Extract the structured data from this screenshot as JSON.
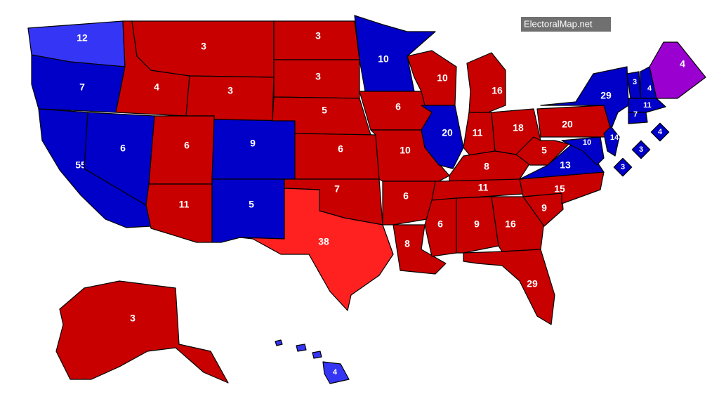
{
  "watermark": "ElectoralMap.net",
  "states": [
    {
      "votes": 12,
      "color": "#3535f5"
    },
    {
      "votes": 7,
      "color": "#0000c8"
    },
    {
      "votes": 55,
      "color": "#0000c8"
    },
    {
      "votes": 6,
      "color": "#0000c8"
    },
    {
      "votes": 4,
      "color": "#c80000"
    },
    {
      "votes": 3,
      "color": "#c80000"
    },
    {
      "votes": 3,
      "color": "#c80000"
    },
    {
      "votes": 6,
      "color": "#c80000"
    },
    {
      "votes": 11,
      "color": "#c80000"
    },
    {
      "votes": 9,
      "color": "#0000c8"
    },
    {
      "votes": 5,
      "color": "#0000c8"
    },
    {
      "votes": 3,
      "color": "#c80000"
    },
    {
      "votes": 3,
      "color": "#c80000"
    },
    {
      "votes": 5,
      "color": "#c80000"
    },
    {
      "votes": 6,
      "color": "#c80000"
    },
    {
      "votes": 7,
      "color": "#c80000"
    },
    {
      "votes": 38,
      "color": "#ff2020"
    },
    {
      "votes": 10,
      "color": "#0000c8"
    },
    {
      "votes": 6,
      "color": "#c80000"
    },
    {
      "votes": 10,
      "color": "#c80000"
    },
    {
      "votes": 6,
      "color": "#c80000"
    },
    {
      "votes": 8,
      "color": "#c80000"
    },
    {
      "votes": 10,
      "color": "#c80000"
    },
    {
      "votes": 20,
      "color": "#0000c8"
    },
    {
      "votes": 16,
      "color": "#c80000"
    },
    {
      "votes": 11,
      "color": "#c80000"
    },
    {
      "votes": 18,
      "color": "#c80000"
    },
    {
      "votes": 8,
      "color": "#c80000"
    },
    {
      "votes": 11,
      "color": "#c80000"
    },
    {
      "votes": 6,
      "color": "#c80000"
    },
    {
      "votes": 9,
      "color": "#c80000"
    },
    {
      "votes": 16,
      "color": "#c80000"
    },
    {
      "votes": 29,
      "color": "#c80000"
    },
    {
      "votes": 9,
      "color": "#c80000"
    },
    {
      "votes": 15,
      "color": "#c80000"
    },
    {
      "votes": 13,
      "color": "#0000c8"
    },
    {
      "votes": 5,
      "color": "#c80000"
    },
    {
      "votes": 20,
      "color": "#c80000"
    },
    {
      "votes": 29,
      "color": "#0000c8"
    },
    {
      "votes": 14,
      "color": "#0000c8"
    },
    {
      "votes": 10,
      "color": "#0000c8"
    },
    {
      "votes": 3,
      "color": "#0000c8"
    },
    {
      "votes": 4,
      "color": "#0000c8"
    },
    {
      "votes": 11,
      "color": "#0000c8"
    },
    {
      "votes": 7,
      "color": "#0000c8"
    },
    {
      "votes": 4,
      "color": "#9a00d0"
    },
    {
      "votes": 3,
      "color": "#0000c8"
    },
    {
      "votes": 3,
      "color": "#0000c8"
    },
    {
      "votes": 4,
      "color": "#0000c8"
    },
    {
      "votes": 3,
      "color": "#c80000"
    },
    {
      "votes": 4,
      "color": "#3535f5"
    }
  ]
}
